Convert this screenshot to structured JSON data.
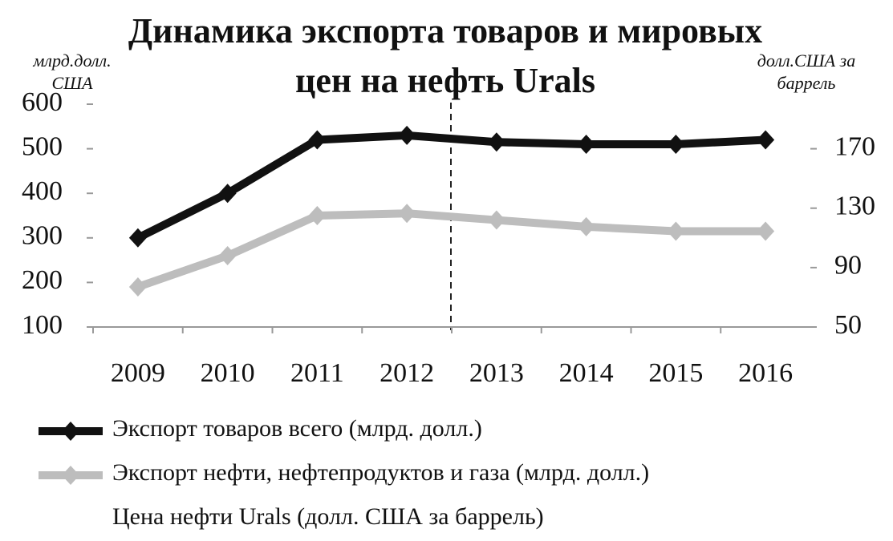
{
  "chart_data": {
    "type": "line",
    "title": "Динамика экспорта товаров и мировых цен на нефть Urals",
    "y_label": "млрд.долл. США",
    "y2_label": "долл.США за баррель",
    "categories": [
      "2009",
      "2010",
      "2011",
      "2012",
      "2013",
      "2014",
      "2015",
      "2016"
    ],
    "series": [
      {
        "name": "Экспорт товаров всего (млрд. долл.)",
        "color": "#111111",
        "values": [
          300,
          400,
          520,
          530,
          515,
          510,
          510,
          520
        ]
      },
      {
        "name": "Экспорт нефти, нефтепродуктов и газа (млрд. долл.)",
        "color": "#bdbdbd",
        "values": [
          190,
          260,
          350,
          355,
          340,
          325,
          315,
          315
        ]
      },
      {
        "name": "Цена нефти Urals (долл. США за баррель)",
        "axis": "y2",
        "values": [
          null,
          null,
          null,
          null,
          null,
          null,
          null,
          null
        ]
      }
    ],
    "ylim": [
      100,
      600
    ],
    "yticks": [
      100,
      200,
      300,
      400,
      500,
      600
    ],
    "y2lim": [
      50,
      200
    ],
    "y2ticks": [
      50,
      90,
      130,
      170
    ]
  }
}
